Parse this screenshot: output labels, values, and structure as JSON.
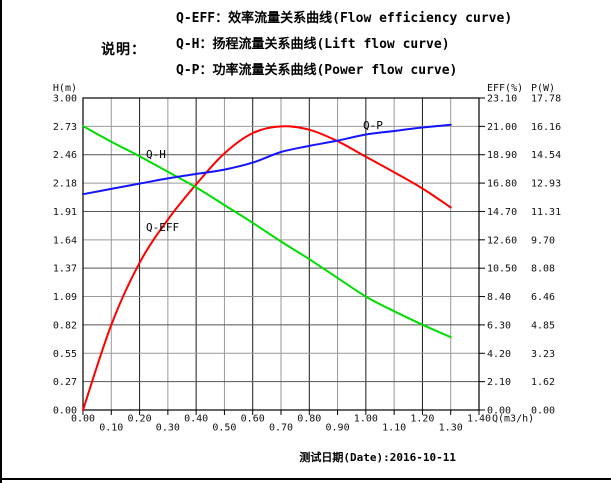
{
  "legend": {
    "note_label": "说明：",
    "lines": [
      "Q-EFF：效率流量关系曲线(Flow efficiency curve)",
      "Q-H：扬程流量关系曲线(Lift flow curve)",
      "Q-P：功率流量关系曲线(Power flow curve)"
    ]
  },
  "footer": {
    "date_label": "测试日期(Date):2016-10-11"
  },
  "chart_data": {
    "type": "line",
    "title": "",
    "grid": true,
    "legend_position": "top",
    "x_axis": {
      "label": "Q(m3/h)",
      "min": 0,
      "max": 1.4,
      "tick_labels": [
        "0.00",
        "0.10",
        "0.20",
        "0.30",
        "0.40",
        "0.50",
        "0.60",
        "0.70",
        "0.80",
        "0.90",
        "1.00",
        "1.10",
        "1.20",
        "1.30",
        "1.40"
      ]
    },
    "y_axes": [
      {
        "id": "h",
        "label": "H(m)",
        "side": "left",
        "min": 0,
        "max": 3.0,
        "tick_labels": [
          "3.00",
          "2.73",
          "2.46",
          "2.18",
          "1.91",
          "1.64",
          "1.37",
          "1.09",
          "0.82",
          "0.55",
          "0.27",
          "0.00"
        ]
      },
      {
        "id": "eff",
        "label": "EFF(%)",
        "side": "right",
        "min": 0,
        "max": 23.1,
        "tick_labels": [
          "23.10",
          "21.00",
          "18.90",
          "16.80",
          "14.70",
          "12.60",
          "10.50",
          "8.40",
          "6.30",
          "4.20",
          "2.10",
          "0.00"
        ]
      },
      {
        "id": "p",
        "label": "P(W)",
        "side": "right",
        "min": 0,
        "max": 17.78,
        "tick_labels": [
          "17.78",
          "16.16",
          "14.54",
          "12.93",
          "11.31",
          "9.70",
          "8.08",
          "6.46",
          "4.85",
          "3.23",
          "1.62",
          "0.00"
        ]
      }
    ],
    "x": [
      0,
      0.1,
      0.2,
      0.3,
      0.4,
      0.5,
      0.6,
      0.7,
      0.8,
      0.9,
      1.0,
      1.1,
      1.2,
      1.3
    ],
    "series": [
      {
        "name": "Q-EFF",
        "axis": "eff",
        "color": "#ff0000",
        "values": [
          0,
          6.3,
          10.9,
          14.1,
          16.7,
          19.0,
          20.5,
          21.0,
          20.75,
          19.9,
          18.75,
          17.6,
          16.4,
          15.0
        ]
      },
      {
        "name": "Q-H",
        "axis": "h",
        "color": "#00dd00",
        "values": [
          2.73,
          2.58,
          2.44,
          2.29,
          2.14,
          1.97,
          1.8,
          1.62,
          1.45,
          1.27,
          1.09,
          0.95,
          0.82,
          0.7
        ]
      },
      {
        "name": "Q-P",
        "axis": "p",
        "color": "#1414ff",
        "values": [
          12.3,
          12.6,
          12.9,
          13.2,
          13.45,
          13.7,
          14.1,
          14.7,
          15.05,
          15.35,
          15.7,
          15.9,
          16.1,
          16.25
        ]
      }
    ],
    "colors": {
      "grid_major": "#1a1a1a",
      "grid_minor": "#999999",
      "frame": "#000000"
    }
  }
}
